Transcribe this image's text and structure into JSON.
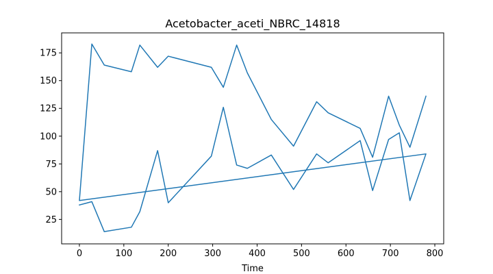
{
  "chart_data": {
    "type": "line",
    "title": "Acetobacter_aceti_NBRC_14818",
    "xlabel": "Time",
    "ylabel": "",
    "xlim": [
      -40,
      820
    ],
    "ylim": [
      3,
      193
    ],
    "xticks": [
      0,
      100,
      200,
      300,
      400,
      500,
      600,
      700,
      800
    ],
    "yticks": [
      25,
      50,
      75,
      100,
      125,
      150,
      175
    ],
    "grid": false,
    "legend": "none",
    "line_color": "#1f77b4",
    "series": [
      {
        "x": [
          0,
          28,
          56,
          117,
          136,
          176,
          200,
          297,
          324,
          354,
          378,
          432,
          482,
          534,
          560,
          632,
          660,
          696,
          720,
          744,
          780,
          0,
          28,
          56,
          117,
          136,
          176,
          200,
          297,
          324,
          354,
          378,
          432,
          482,
          534,
          560,
          632,
          660,
          696,
          720,
          744,
          780
        ],
        "y": [
          38,
          41,
          14,
          18,
          32,
          87,
          40,
          82,
          126,
          74,
          71,
          83,
          52,
          84,
          76,
          96,
          51,
          97,
          103,
          42,
          84,
          42,
          183,
          164,
          158,
          182,
          162,
          172,
          162,
          144,
          182,
          157,
          115,
          91,
          131,
          121,
          107,
          81,
          136,
          110,
          90,
          136
        ]
      }
    ]
  }
}
